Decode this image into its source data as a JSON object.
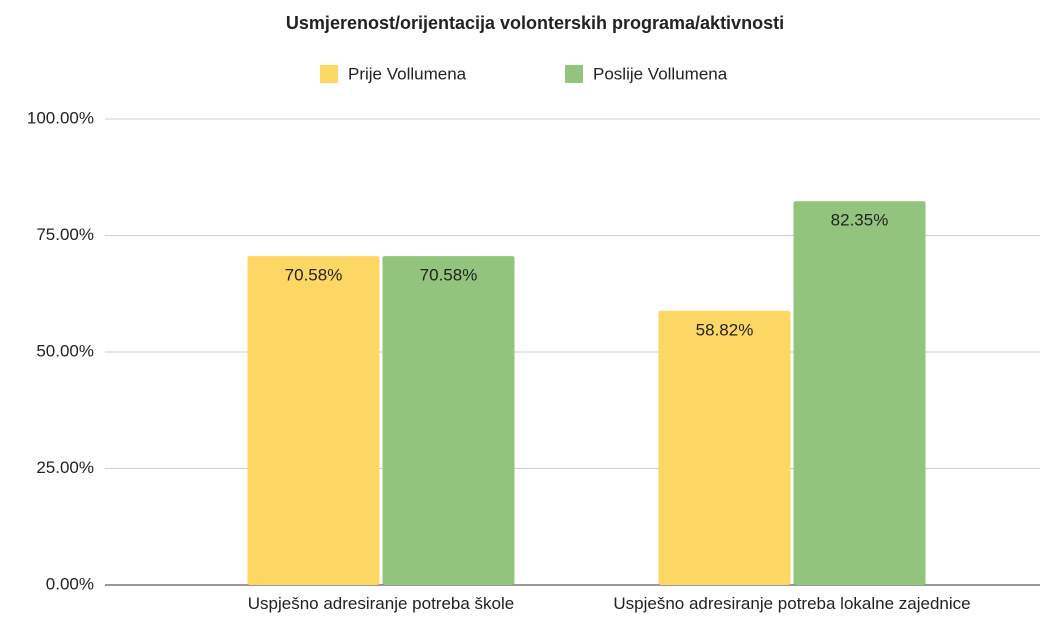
{
  "chart_data": {
    "type": "bar",
    "title": "Usmjerenost/orijentacija volonterskih programa/aktivnosti",
    "categories": [
      "Uspješno adresiranje potreba škole",
      "Uspješno adresiranje potreba lokalne zajednice"
    ],
    "series": [
      {
        "name": "Prije Vollumena",
        "color": "#fdd764",
        "values": [
          70.58,
          58.82
        ],
        "value_labels": [
          "70.58%",
          "58.82%"
        ]
      },
      {
        "name": "Poslije Vollumena",
        "color": "#93c47d",
        "values": [
          70.58,
          82.35
        ],
        "value_labels": [
          "70.58%",
          "82.35%"
        ]
      }
    ],
    "ylim": [
      0,
      100
    ],
    "yticks": [
      {
        "value": 0,
        "label": "0.00%"
      },
      {
        "value": 25,
        "label": "25.00%"
      },
      {
        "value": 50,
        "label": "50.00%"
      },
      {
        "value": 75,
        "label": "75.00%"
      },
      {
        "value": 100,
        "label": "100.00%"
      }
    ],
    "grid": true,
    "legend": "top"
  }
}
